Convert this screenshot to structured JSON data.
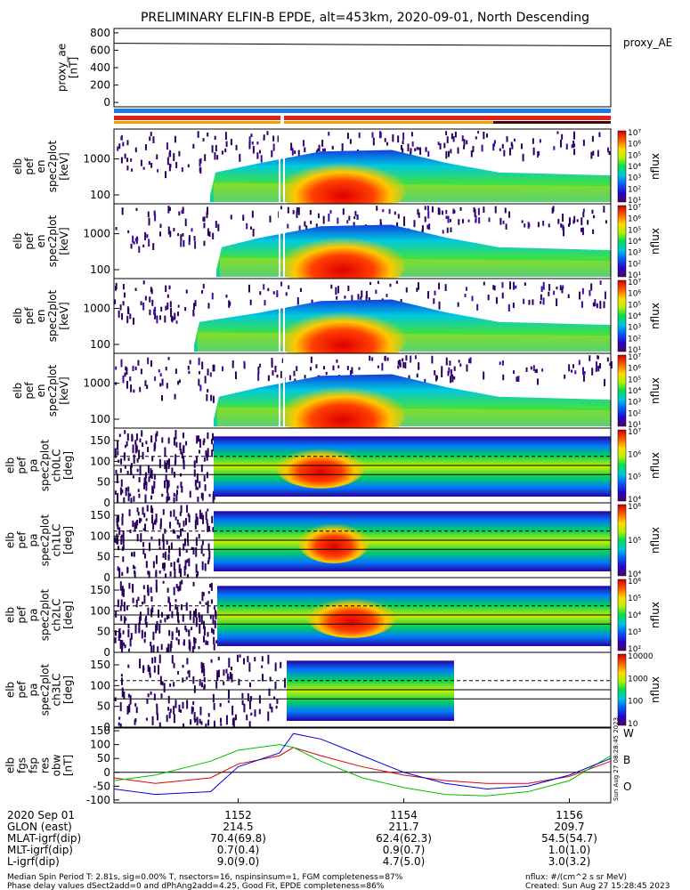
{
  "title": "PRELIMINARY ELFIN-B EPDE, alt=453km, 2020-09-01, North Descending",
  "proxy_panel": {
    "ylabel": [
      "proxy_ae",
      "[nT]"
    ],
    "yticks": [
      "800",
      "600",
      "400",
      "200",
      "0"
    ],
    "legend": "proxy_AE"
  },
  "spec_panels": [
    {
      "ylabel": [
        "elb",
        "pef",
        "en",
        "spec2plot",
        "[keV]"
      ],
      "yticks": [
        "1000",
        "100"
      ],
      "cbar": [
        "10⁷",
        "10⁶",
        "10⁵",
        "10⁴",
        "10³",
        "10²",
        "10¹"
      ],
      "cbar_label": "nflux"
    },
    {
      "ylabel": [
        "elb",
        "pef",
        "en",
        "spec2plot",
        "[keV]"
      ],
      "yticks": [
        "1000",
        "100"
      ],
      "cbar": [
        "10⁷",
        "10⁶",
        "10⁵",
        "10⁴",
        "10³",
        "10²",
        "10¹"
      ],
      "cbar_label": "nflux"
    },
    {
      "ylabel": [
        "elb",
        "pef",
        "en",
        "spec2plot",
        "[keV]"
      ],
      "yticks": [
        "1000",
        "100"
      ],
      "cbar": [
        "10⁷",
        "10⁶",
        "10⁵",
        "10⁴",
        "10³",
        "10²",
        "10¹"
      ],
      "cbar_label": "nflux"
    },
    {
      "ylabel": [
        "elb",
        "pef",
        "en",
        "spec2plot",
        "[keV]"
      ],
      "yticks": [
        "1000",
        "100"
      ],
      "cbar": [
        "10⁷",
        "10⁶",
        "10⁵",
        "10⁴",
        "10³",
        "10²",
        "10¹"
      ],
      "cbar_label": "nflux"
    }
  ],
  "pa_panels": [
    {
      "ylabel": [
        "elb",
        "pef",
        "pa",
        "spec2plot",
        "ch0LC",
        "[deg]"
      ],
      "yticks": [
        "150",
        "100",
        "50",
        "0"
      ],
      "cbar": [
        "10⁷",
        "10⁶",
        "10⁵",
        "10⁴"
      ],
      "cbar_label": "nflux"
    },
    {
      "ylabel": [
        "elb",
        "pef",
        "pa",
        "spec2plot",
        "ch1LC",
        "[deg]"
      ],
      "yticks": [
        "150",
        "100",
        "50",
        "0"
      ],
      "cbar": [
        "10⁶",
        "10⁵",
        "10⁴"
      ],
      "cbar_label": "nflux"
    },
    {
      "ylabel": [
        "elb",
        "pef",
        "pa",
        "spec2plot",
        "ch2LC",
        "[deg]"
      ],
      "yticks": [
        "150",
        "100",
        "50",
        "0"
      ],
      "cbar": [
        "10⁶",
        "10⁵",
        "10⁴",
        "10³",
        "10²"
      ],
      "cbar_label": "nflux"
    },
    {
      "ylabel": [
        "elb",
        "pef",
        "pa",
        "spec2plot",
        "ch3LC",
        "[deg]"
      ],
      "yticks": [
        "150",
        "100",
        "50",
        "0"
      ],
      "cbar": [
        "10000",
        "1000",
        "100",
        "10"
      ],
      "cbar_label": "nflux"
    }
  ],
  "field_panel": {
    "ylabel": [
      "elb",
      "fgs",
      "fsp",
      "res",
      "obw",
      "[nT]"
    ],
    "yticks": [
      "150",
      "100",
      "50",
      "0",
      "-50",
      "-100"
    ],
    "legend": [
      {
        "label": "W",
        "color": "#e00000"
      },
      {
        "label": "B",
        "color": "#00c000"
      },
      {
        "label": "O",
        "color": "#0000e0"
      }
    ],
    "stamp": "Sun Aug 27 08:28:45 2023"
  },
  "xaxis": {
    "rows": [
      {
        "label": "2020 Sep 01",
        "values": [
          "1152",
          "1154",
          "1156"
        ]
      },
      {
        "label": "GLON (east)",
        "values": [
          "214.5",
          "211.7",
          "209.7"
        ]
      },
      {
        "label": "MLAT-igrf(dip)",
        "values": [
          "70.4(69.8)",
          "62.4(62.3)",
          "54.5(54.7)"
        ]
      },
      {
        "label": "MLT-igrf(dip)",
        "values": [
          "0.7(0.4)",
          "0.9(0.7)",
          "1.0(1.0)"
        ]
      },
      {
        "label": "L-igrf(dip)",
        "values": [
          "9.0(9.0)",
          "4.7(5.0)",
          "3.0(3.2)"
        ]
      }
    ]
  },
  "footer": {
    "left1": "Median Spin Period T: 2.81s, sig=0.00% T, nsectors=16, nspinsinsum=1, FGM completeness=87%",
    "left2": "Phase delay values dSect2add=0 and dPhAng2add=4.25, Good Fit, EPDE completeness=86%",
    "right1": "nflux: #/(cm^2 s sr MeV)",
    "right2": "Created: Sun Aug 27 15:28:45 2023"
  },
  "colors": {
    "bar_blue": "#1e78e6",
    "bar_red": "#e62010",
    "bar_orange": "#f0a000",
    "bar_black": "#3c0a0a"
  },
  "chart_data": {
    "type": "line",
    "title": "PRELIMINARY ELFIN-B EPDE, alt=453km, 2020-09-01, North Descending",
    "xlabel": "",
    "x_ticks": [
      "1152",
      "1154",
      "1156"
    ],
    "proxy_AE": {
      "x": [
        "11:50:30",
        "11:56:30"
      ],
      "values": [
        680,
        650
      ],
      "ylim": [
        -50,
        850
      ]
    },
    "field_series": [
      {
        "name": "W",
        "x": [
          "11:50:30",
          "11:51:00",
          "11:51:40",
          "11:52:00",
          "11:52:30",
          "11:52:40",
          "11:53:00",
          "11:53:30",
          "11:54:00",
          "11:54:30",
          "11:55:00",
          "11:55:30",
          "11:56:00",
          "11:56:30"
        ],
        "values": [
          -20,
          -40,
          -20,
          30,
          60,
          90,
          60,
          20,
          -10,
          -30,
          -40,
          -40,
          -15,
          40
        ]
      },
      {
        "name": "B",
        "x": [
          "11:50:30",
          "11:51:00",
          "11:51:40",
          "11:52:00",
          "11:52:30",
          "11:52:40",
          "11:53:00",
          "11:53:30",
          "11:54:00",
          "11:54:30",
          "11:55:00",
          "11:55:30",
          "11:56:00",
          "11:56:30"
        ],
        "values": [
          -30,
          -10,
          40,
          80,
          100,
          90,
          40,
          -20,
          -55,
          -80,
          -85,
          -70,
          -30,
          60
        ]
      },
      {
        "name": "O",
        "x": [
          "11:50:30",
          "11:51:00",
          "11:51:40",
          "11:52:00",
          "11:52:30",
          "11:52:40",
          "11:53:00",
          "11:53:30",
          "11:54:00",
          "11:54:30",
          "11:55:00",
          "11:55:30",
          "11:56:00",
          "11:56:30"
        ],
        "values": [
          -60,
          -80,
          -70,
          20,
          70,
          140,
          120,
          60,
          0,
          -40,
          -60,
          -50,
          -10,
          50
        ]
      }
    ],
    "field_ylim": [
      -110,
      160
    ]
  }
}
